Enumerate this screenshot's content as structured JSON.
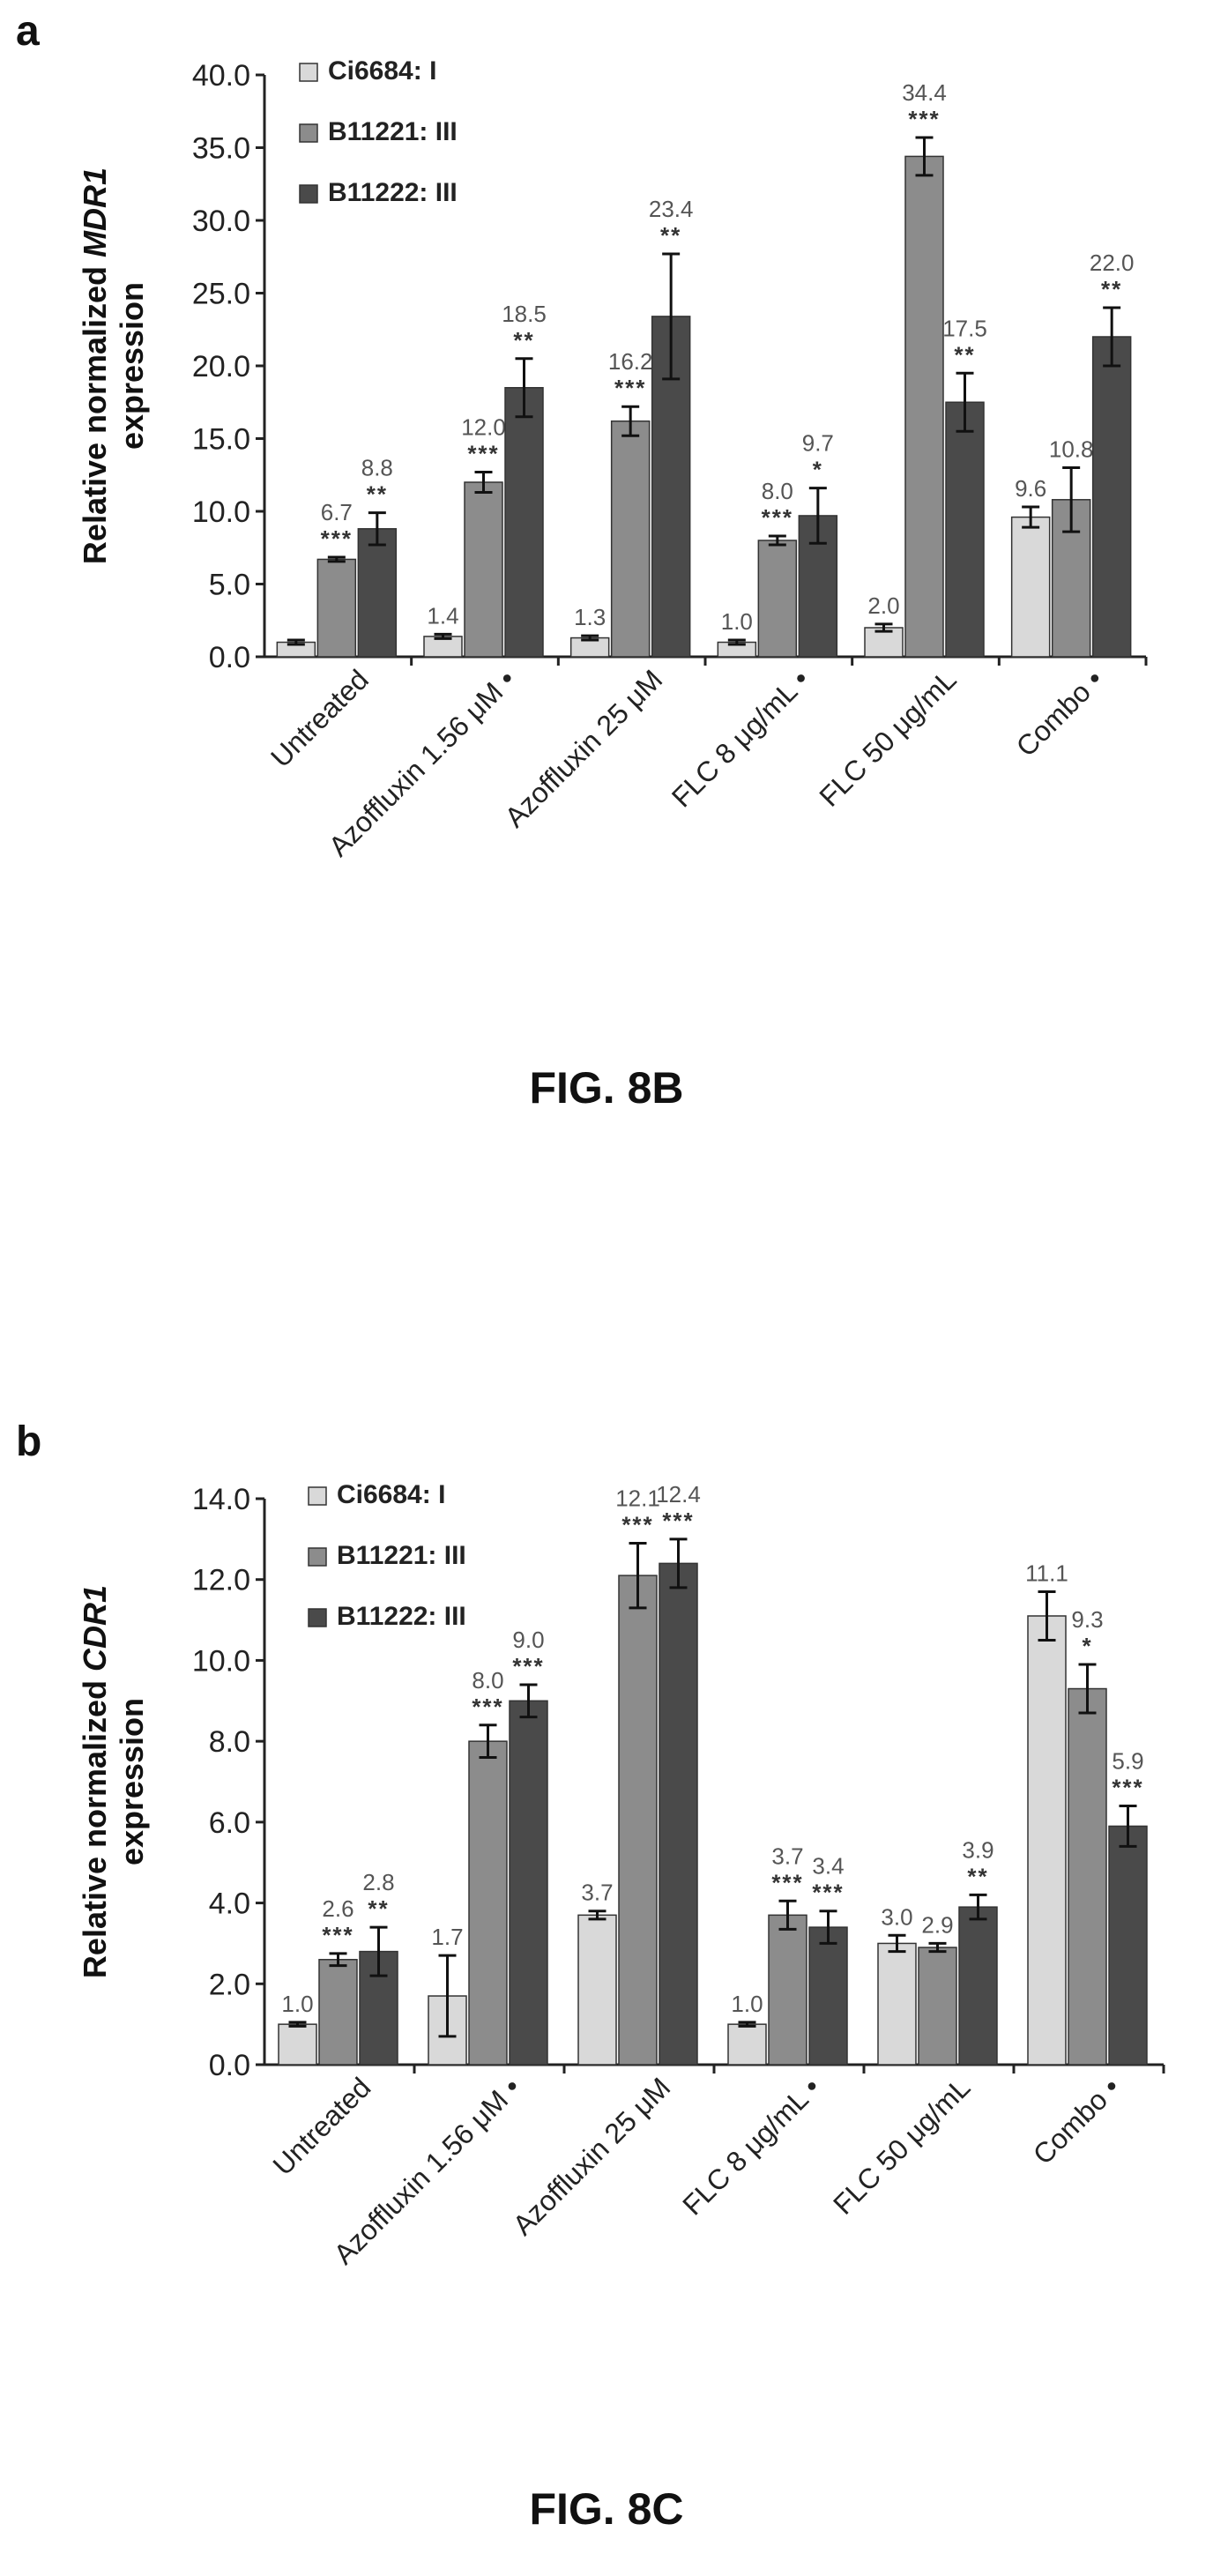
{
  "figures": [
    {
      "panel_label": "a",
      "caption": "FIG. 8B",
      "chart_data": {
        "type": "bar",
        "ylabel_prefix": "Relative normalized ",
        "ylabel_gene": "MDR1",
        "ylabel_line2": "expression",
        "ylim": [
          0,
          40
        ],
        "yticks": [
          "0.0",
          "5.0",
          "10.0",
          "15.0",
          "20.0",
          "25.0",
          "30.0",
          "35.0",
          "40.0"
        ],
        "ytick_values": [
          0,
          5,
          10,
          15,
          20,
          25,
          30,
          35,
          40
        ],
        "categories": [
          "Untreated",
          "Azoffluxin 1.56 μM •",
          "Azoffluxin 25 μM",
          "FLC 8 μg/mL •",
          "FLC 50 μg/mL",
          "Combo •"
        ],
        "legend_placement": "top-left",
        "series": [
          {
            "name": "Ci6684: I",
            "color": "#d9d9d9",
            "values": [
              1.0,
              1.4,
              1.3,
              1.0,
              2.0,
              9.6
            ],
            "errors": [
              0.15,
              0.15,
              0.15,
              0.15,
              0.25,
              0.7
            ],
            "labels": [
              "",
              "1.4",
              "1.3",
              "1.0",
              "2.0",
              "9.6"
            ],
            "sig": [
              "",
              "",
              "",
              "",
              "",
              ""
            ]
          },
          {
            "name": "B11221: III",
            "color": "#8c8c8c",
            "values": [
              6.7,
              12.0,
              16.2,
              8.0,
              34.4,
              10.8
            ],
            "errors": [
              0.15,
              0.7,
              1.0,
              0.3,
              1.3,
              2.2
            ],
            "labels": [
              "6.7",
              "12.0",
              "16.2",
              "8.0",
              "34.4",
              "10.8"
            ],
            "sig": [
              "***",
              "***",
              "***",
              "***",
              "***",
              ""
            ]
          },
          {
            "name": "B11222: III",
            "color": "#4a4a4a",
            "values": [
              8.8,
              18.5,
              23.4,
              9.7,
              17.5,
              22.0
            ],
            "errors": [
              1.1,
              2.0,
              4.3,
              1.9,
              2.0,
              2.0
            ],
            "labels": [
              "8.8",
              "18.5",
              "23.4",
              "9.7",
              "17.5",
              "22.0"
            ],
            "sig": [
              "**",
              "**",
              "**",
              "*",
              "**",
              "**"
            ]
          }
        ]
      }
    },
    {
      "panel_label": "b",
      "caption": "FIG. 8C",
      "chart_data": {
        "type": "bar",
        "ylabel_prefix": "Relative normalized ",
        "ylabel_gene": "CDR1",
        "ylabel_line2": "expression",
        "ylim": [
          0,
          14
        ],
        "yticks": [
          "0.0",
          "2.0",
          "4.0",
          "6.0",
          "8.0",
          "10.0",
          "12.0",
          "14.0"
        ],
        "ytick_values": [
          0,
          2,
          4,
          6,
          8,
          10,
          12,
          14
        ],
        "categories": [
          "Untreated",
          "Azoffluxin 1.56 μM •",
          "Azoffluxin 25 μM",
          "FLC 8 μg/mL •",
          "FLC 50 μg/mL",
          "Combo •"
        ],
        "legend_placement": "top-left",
        "series": [
          {
            "name": "Ci6684: I",
            "color": "#d9d9d9",
            "values": [
              1.0,
              1.7,
              3.7,
              1.0,
              3.0,
              11.1
            ],
            "errors": [
              0.05,
              1.0,
              0.1,
              0.05,
              0.2,
              0.6
            ],
            "labels": [
              "1.0",
              "1.7",
              "3.7",
              "1.0",
              "3.0",
              "11.1"
            ],
            "sig": [
              "",
              "",
              "",
              "",
              "",
              ""
            ]
          },
          {
            "name": "B11221: III",
            "color": "#8c8c8c",
            "values": [
              2.6,
              8.0,
              12.1,
              3.7,
              2.9,
              9.3
            ],
            "errors": [
              0.15,
              0.4,
              0.8,
              0.35,
              0.1,
              0.6
            ],
            "labels": [
              "2.6",
              "8.0",
              "12.1",
              "3.7",
              "2.9",
              "9.3"
            ],
            "sig": [
              "***",
              "***",
              "***",
              "***",
              "",
              "*"
            ]
          },
          {
            "name": "B11222: III",
            "color": "#4a4a4a",
            "values": [
              2.8,
              9.0,
              12.4,
              3.4,
              3.9,
              5.9
            ],
            "errors": [
              0.6,
              0.4,
              0.6,
              0.4,
              0.3,
              0.5
            ],
            "labels": [
              "2.8",
              "9.0",
              "12.4",
              "3.4",
              "3.9",
              "5.9"
            ],
            "sig": [
              "**",
              "***",
              "***",
              "***",
              "**",
              "***"
            ]
          }
        ]
      }
    }
  ]
}
